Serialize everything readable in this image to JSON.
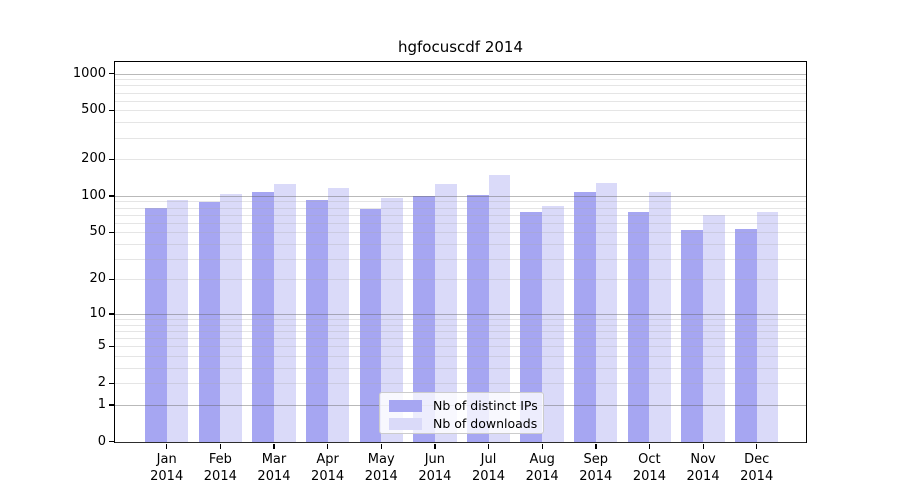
{
  "chart_data": {
    "type": "bar",
    "title": "hgfocuscdf 2014",
    "categories": [
      "Jan",
      "Feb",
      "Mar",
      "Apr",
      "May",
      "Jun",
      "Jul",
      "Aug",
      "Sep",
      "Oct",
      "Nov",
      "Dec"
    ],
    "year": "2014",
    "series": [
      {
        "name": "Nb of distinct IPs",
        "color": "#a6a6f2",
        "values": [
          80,
          89,
          107,
          92,
          78,
          99,
          102,
          74,
          107,
          74,
          52,
          53
        ]
      },
      {
        "name": "Nb of downloads",
        "color": "#dadaf9",
        "values": [
          92,
          103,
          126,
          115,
          96,
          125,
          147,
          83,
          127,
          107,
          70,
          74
        ]
      }
    ],
    "y_ticks": [
      0,
      1,
      2,
      5,
      10,
      20,
      50,
      100,
      200,
      500,
      1000
    ],
    "y_scale": "log10(value+1)",
    "ylim": [
      0,
      1250
    ],
    "xlabel": "",
    "ylabel": "",
    "grid": true,
    "gridlines_above_bars": true,
    "legend_position": "lower center",
    "colors": {
      "major_grid": "#b9b9b9",
      "minor_grid": "#e2e2e2",
      "axis": "#000000",
      "background": "#ffffff",
      "legend_border": "#cccccc"
    }
  }
}
